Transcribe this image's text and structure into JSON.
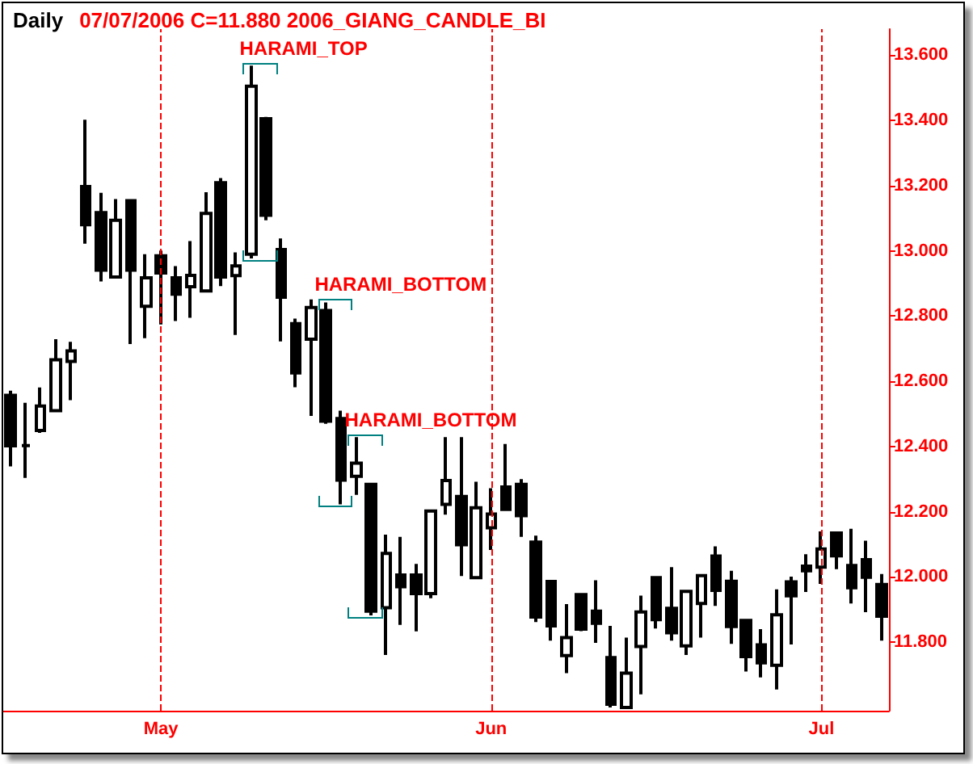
{
  "chart_data": {
    "type": "candlestick",
    "title": "Daily",
    "subtitle": "07/07/2006  C=11.880    2006_GIANG_CANDLE_BI",
    "annotations": [
      "HARAMI_TOP",
      "HARAMI_BOTTOM",
      "HARAMI_BOTTOM"
    ],
    "categories": [
      null,
      null,
      null,
      null,
      null,
      null,
      null,
      null,
      null,
      null,
      "May",
      null,
      null,
      null,
      null,
      null,
      null,
      null,
      null,
      null,
      null,
      null,
      null,
      null,
      null,
      null,
      null,
      null,
      null,
      null,
      null,
      null,
      "Jun",
      null,
      null,
      null,
      null,
      null,
      null,
      null,
      null,
      null,
      null,
      null,
      null,
      null,
      null,
      null,
      null,
      null,
      null,
      null,
      null,
      null,
      "Jul",
      null,
      null,
      null,
      null
    ],
    "color": "#000000",
    "ohlc": [
      [
        12.557,
        12.571,
        12.339,
        12.402
      ],
      [
        12.403,
        12.534,
        12.304,
        12.403
      ],
      [
        12.449,
        12.581,
        12.442,
        12.524
      ],
      [
        12.51,
        12.729,
        12.507,
        12.666
      ],
      [
        12.661,
        12.721,
        12.542,
        12.693
      ],
      [
        13.197,
        13.402,
        13.022,
        13.08
      ],
      [
        13.117,
        13.178,
        12.906,
        12.941
      ],
      [
        12.92,
        13.159,
        12.916,
        13.094
      ],
      [
        13.154,
        13.154,
        12.714,
        12.941
      ],
      [
        12.83,
        12.99,
        12.732,
        12.917
      ],
      [
        12.985,
        13.001,
        12.774,
        12.932
      ],
      [
        12.917,
        12.953,
        12.785,
        12.867
      ],
      [
        12.89,
        13.03,
        12.795,
        12.925
      ],
      [
        12.877,
        13.18,
        12.874,
        13.115
      ],
      [
        13.209,
        13.223,
        12.892,
        12.92
      ],
      [
        12.924,
        12.995,
        12.742,
        12.954
      ],
      [
        12.99,
        13.568,
        12.977,
        13.505
      ],
      [
        13.405,
        13.411,
        13.094,
        13.109
      ],
      [
        13.004,
        13.038,
        12.722,
        12.858
      ],
      [
        12.777,
        12.792,
        12.582,
        12.626
      ],
      [
        12.729,
        12.851,
        12.494,
        12.826
      ],
      [
        12.817,
        12.842,
        12.47,
        12.478
      ],
      [
        12.486,
        12.51,
        12.223,
        12.297
      ],
      [
        12.309,
        12.429,
        12.252,
        12.349
      ],
      [
        12.284,
        12.284,
        11.882,
        11.895
      ],
      [
        11.906,
        12.13,
        11.761,
        12.072
      ],
      [
        12.006,
        12.123,
        11.853,
        11.97
      ],
      [
        12.006,
        12.04,
        11.833,
        11.949
      ],
      [
        11.949,
        12.202,
        11.935,
        12.202
      ],
      [
        12.223,
        12.429,
        12.191,
        12.296
      ],
      [
        12.247,
        12.429,
        12.003,
        12.099
      ],
      [
        11.998,
        12.292,
        11.995,
        12.212
      ],
      [
        12.151,
        12.272,
        12.083,
        12.193
      ],
      [
        12.276,
        12.408,
        12.204,
        12.207
      ],
      [
        12.284,
        12.3,
        12.123,
        12.188
      ],
      [
        12.107,
        12.127,
        11.862,
        11.877
      ],
      [
        11.986,
        11.986,
        11.805,
        11.85
      ],
      [
        11.759,
        11.917,
        11.705,
        11.814
      ],
      [
        11.946,
        11.946,
        11.834,
        11.84
      ],
      [
        11.895,
        11.99,
        11.798,
        11.858
      ],
      [
        11.753,
        11.85,
        11.6,
        11.61
      ],
      [
        11.6,
        11.814,
        11.6,
        11.705
      ],
      [
        11.787,
        11.943,
        11.64,
        11.893
      ],
      [
        11.998,
        12.003,
        11.842,
        11.869
      ],
      [
        11.904,
        12.03,
        11.805,
        11.829
      ],
      [
        11.789,
        11.956,
        11.761,
        11.956
      ],
      [
        11.919,
        12.004,
        11.814,
        12.004
      ],
      [
        12.064,
        12.094,
        11.911,
        11.959
      ],
      [
        11.987,
        12.019,
        11.795,
        11.848
      ],
      [
        11.867,
        11.867,
        11.71,
        11.756
      ],
      [
        11.792,
        11.84,
        11.692,
        11.737
      ],
      [
        11.729,
        11.962,
        11.655,
        11.884
      ],
      [
        11.985,
        12.001,
        11.793,
        11.942
      ],
      [
        12.033,
        12.07,
        11.954,
        12.019
      ],
      [
        12.03,
        12.14,
        11.979,
        12.086
      ],
      [
        12.135,
        12.135,
        12.024,
        12.065
      ],
      [
        12.035,
        12.148,
        11.919,
        11.967
      ],
      [
        12.053,
        12.111,
        11.892,
        11.999
      ],
      [
        11.977,
        12.009,
        11.805,
        11.88
      ]
    ],
    "ylim": [
      11.59,
      13.68
    ],
    "yticks": [
      {
        "value": 11.8,
        "label": "11.800"
      },
      {
        "value": 12.0,
        "label": "12.000"
      },
      {
        "value": 12.2,
        "label": "12.200"
      },
      {
        "value": 12.4,
        "label": "12.400"
      },
      {
        "value": 12.6,
        "label": "12.600"
      },
      {
        "value": 12.8,
        "label": "12.800"
      },
      {
        "value": 13.0,
        "label": "13.000"
      },
      {
        "value": 13.2,
        "label": "13.200"
      },
      {
        "value": 13.4,
        "label": "13.400"
      },
      {
        "value": 13.6,
        "label": "13.600"
      }
    ],
    "ref_lines": [
      {
        "axis": "x",
        "value": "May",
        "label": null,
        "color": "#ff0000",
        "line_style": "dashed"
      },
      {
        "axis": "x",
        "value": "Jun",
        "label": null,
        "color": "#ff0000",
        "line_style": "dashed"
      },
      {
        "axis": "x",
        "value": "Jul",
        "label": null,
        "color": "#ff0000",
        "line_style": "dashed"
      }
    ],
    "grid": false
  }
}
